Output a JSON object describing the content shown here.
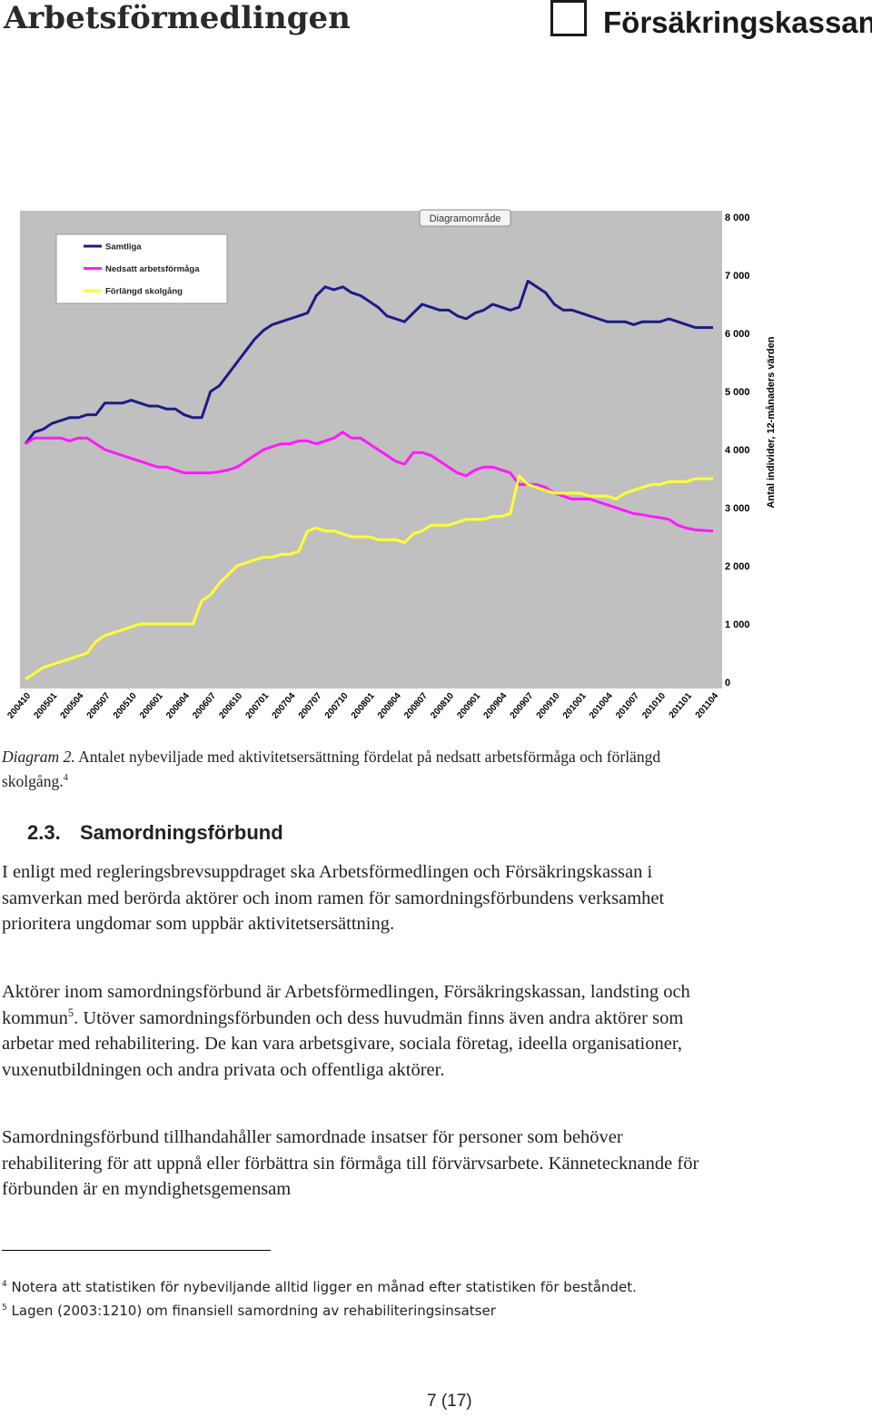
{
  "header": {
    "logos": [
      "Arbetsförmedlingen",
      "Försäkringskassan"
    ]
  },
  "chart_data": {
    "type": "line",
    "annotation": "Diagramområde",
    "y_label": "Antal individer, 12-månaders värden",
    "categories": [
      "200410",
      null,
      null,
      "200501",
      null,
      null,
      "200504",
      null,
      null,
      "200507",
      null,
      null,
      "200510",
      null,
      null,
      "200601",
      null,
      null,
      "200604",
      null,
      null,
      "200607",
      null,
      null,
      "200610",
      null,
      null,
      "200701",
      null,
      null,
      "200704",
      null,
      null,
      "200707",
      null,
      null,
      "200710",
      null,
      null,
      "200801",
      null,
      null,
      "200804",
      null,
      null,
      "200807",
      null,
      null,
      "200810",
      null,
      null,
      "200901",
      null,
      null,
      "200904",
      null,
      null,
      "200907",
      null,
      null,
      "200910",
      null,
      null,
      "201001",
      null,
      null,
      "201004",
      null,
      null,
      "201007",
      null,
      null,
      "201010",
      null,
      null,
      "201101",
      null,
      null,
      "201104"
    ],
    "series": [
      {
        "name": "Samtliga",
        "color": "#1c1c86",
        "values": [
          4100,
          4300,
          4350,
          4450,
          4500,
          4550,
          4550,
          4600,
          4600,
          4800,
          4800,
          4800,
          4850,
          4800,
          4750,
          4750,
          4700,
          4700,
          4600,
          4550,
          4550,
          5000,
          5100,
          5300,
          5500,
          5700,
          5900,
          6050,
          6150,
          6200,
          6250,
          6300,
          6350,
          6650,
          6800,
          6750,
          6800,
          6700,
          6650,
          6550,
          6450,
          6300,
          6250,
          6200,
          6350,
          6500,
          6450,
          6400,
          6400,
          6300,
          6250,
          6350,
          6400,
          6500,
          6450,
          6400,
          6450,
          6900,
          6800,
          6700,
          6500,
          6400,
          6400,
          6350,
          6300,
          6250,
          6200,
          6200,
          6200,
          6150,
          6200,
          6200,
          6200,
          6250,
          6200,
          6150,
          6100,
          6100,
          6100
        ]
      },
      {
        "name": "Nedsatt arbetsförmåga",
        "color": "#ff19ff",
        "values": [
          4100,
          4200,
          4200,
          4200,
          4200,
          4150,
          4200,
          4200,
          4100,
          4000,
          3950,
          3900,
          3850,
          3800,
          3750,
          3700,
          3700,
          3650,
          3600,
          3600,
          3600,
          3600,
          3620,
          3650,
          3700,
          3800,
          3900,
          4000,
          4050,
          4100,
          4100,
          4150,
          4150,
          4100,
          4150,
          4200,
          4300,
          4200,
          4200,
          4100,
          4000,
          3900,
          3800,
          3750,
          3950,
          3950,
          3900,
          3800,
          3700,
          3600,
          3550,
          3650,
          3700,
          3700,
          3650,
          3600,
          3400,
          3400,
          3400,
          3350,
          3250,
          3200,
          3150,
          3150,
          3150,
          3100,
          3050,
          3000,
          2950,
          2900,
          2880,
          2850,
          2830,
          2800,
          2700,
          2650,
          2620,
          2610,
          2600
        ]
      },
      {
        "name": "Förlängd skolgång",
        "color": "#ffff33",
        "values": [
          50,
          150,
          250,
          300,
          350,
          400,
          450,
          500,
          700,
          800,
          850,
          900,
          950,
          1000,
          1000,
          1000,
          1000,
          1000,
          1000,
          1000,
          1400,
          1500,
          1700,
          1850,
          2000,
          2050,
          2100,
          2150,
          2150,
          2200,
          2200,
          2250,
          2600,
          2650,
          2600,
          2600,
          2550,
          2500,
          2500,
          2500,
          2450,
          2450,
          2450,
          2400,
          2550,
          2600,
          2700,
          2700,
          2700,
          2750,
          2800,
          2800,
          2800,
          2850,
          2850,
          2900,
          3550,
          3400,
          3350,
          3300,
          3250,
          3250,
          3250,
          3250,
          3200,
          3200,
          3200,
          3150,
          3250,
          3300,
          3350,
          3400,
          3400,
          3450,
          3450,
          3450,
          3500,
          3500,
          3500
        ]
      }
    ],
    "ylim": [
      0,
      8000
    ],
    "yticks": [
      0,
      {
        "value": 1000,
        "label": "1 000"
      },
      {
        "value": 2000,
        "label": "2 000"
      },
      {
        "value": 3000,
        "label": "3 000"
      },
      {
        "value": 4000,
        "label": "4 000"
      },
      {
        "value": 5000,
        "label": "5 000"
      },
      {
        "value": 6000,
        "label": "6 000"
      },
      {
        "value": 7000,
        "label": "7 000"
      },
      {
        "value": 8000,
        "label": "8 000"
      }
    ],
    "grid": false,
    "legend": "top-left"
  },
  "caption": {
    "label": "Diagram 2.",
    "text": " Antalet nybeviljade med aktivitetsersättning fördelat på nedsatt arbetsförmåga och förlängd skolgång.",
    "note_ref": "4"
  },
  "section": {
    "number": "2.3.",
    "title": "Samordningsförbund"
  },
  "paragraphs": [
    {
      "text": "I enligt med regleringsbrevsuppdraget ska Arbetsförmedlingen och Försäkringskassan i samverkan med berörda aktörer och inom ramen för samordningsförbundens verksamhet prioritera ungdomar som uppbär aktivitetsersättning."
    },
    {
      "text": "Aktörer inom samordningsförbund är Arbetsförmedlingen, Försäkringskassan, landsting och kommun",
      "note_ref": "5",
      "text_after": ". Utöver samordningsförbunden och dess huvudmän finns även andra aktörer som arbetar med rehabilitering. De kan vara arbetsgivare, sociala företag, ideella organisationer, vuxenutbildningen och andra privata och offentliga aktörer."
    },
    {
      "text": "Samordningsförbund tillhandahåller samordnade insatser för personer som behöver rehabilitering för att uppnå eller förbättra sin förmåga till förvärvsarbete. Kännetecknande för förbunden är en myndighetsgemensam"
    }
  ],
  "footnotes": [
    {
      "mark": "4",
      "text": "Notera att statistiken för nybeviljande alltid ligger en månad efter statistiken för beståndet."
    },
    {
      "mark": "5",
      "text": "Lagen (2003:1210) om finansiell samordning av rehabiliteringsinsatser"
    }
  ],
  "page_number": "7 (17)"
}
